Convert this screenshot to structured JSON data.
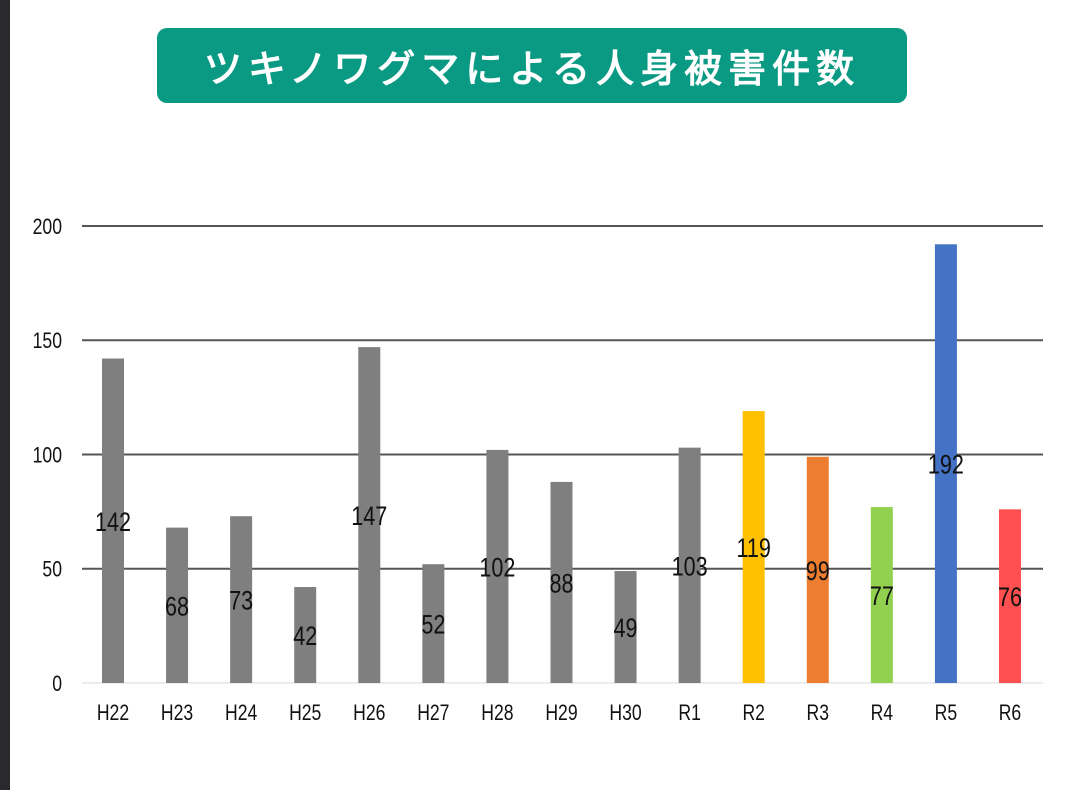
{
  "chart_data": {
    "type": "bar",
    "title": "ツキノワグマによる人身被害件数",
    "categories": [
      "H22",
      "H23",
      "H24",
      "H25",
      "H26",
      "H27",
      "H28",
      "H29",
      "H30",
      "R1",
      "R2",
      "R3",
      "R4",
      "R5",
      "R6"
    ],
    "values": [
      142,
      68,
      73,
      42,
      147,
      52,
      102,
      88,
      49,
      103,
      119,
      99,
      77,
      192,
      76
    ],
    "colors": [
      "#7f7f7f",
      "#7f7f7f",
      "#7f7f7f",
      "#7f7f7f",
      "#7f7f7f",
      "#7f7f7f",
      "#7f7f7f",
      "#7f7f7f",
      "#7f7f7f",
      "#7f7f7f",
      "#ffc000",
      "#ed7d31",
      "#92d050",
      "#4472c4",
      "#ff4f4f"
    ],
    "xlabel": "",
    "ylabel": "",
    "ylim": [
      0,
      200
    ],
    "yticks": [
      0,
      50,
      100,
      150,
      200
    ],
    "grid": true,
    "legend": "none",
    "title_bg": "#0a9a83"
  }
}
